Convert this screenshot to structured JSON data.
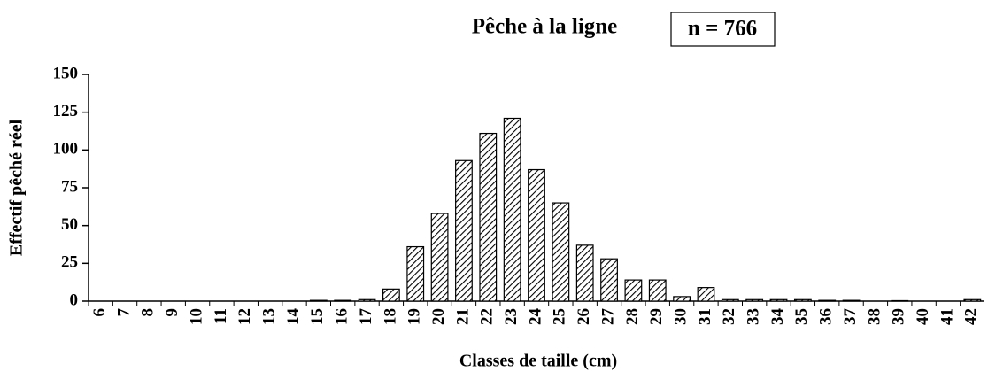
{
  "chart_data": {
    "type": "bar",
    "title": "Pêche à la ligne",
    "annotation": "n = 766",
    "xlabel": "Classes de taille (cm)",
    "ylabel": "Effectif pêché réel",
    "categories": [
      "6",
      "7",
      "8",
      "9",
      "10",
      "11",
      "12",
      "13",
      "14",
      "15",
      "16",
      "17",
      "18",
      "19",
      "20",
      "21",
      "22",
      "23",
      "24",
      "25",
      "26",
      "27",
      "28",
      "29",
      "30",
      "31",
      "32",
      "33",
      "34",
      "35",
      "36",
      "37",
      "38",
      "39",
      "40",
      "41",
      "42"
    ],
    "values": [
      0,
      0,
      0,
      0,
      0,
      0,
      0,
      0,
      0,
      0.5,
      0.5,
      1,
      8,
      36,
      58,
      93,
      111,
      121,
      87,
      65,
      37,
      28,
      14,
      14,
      3,
      9,
      1,
      1,
      1,
      1,
      0.5,
      0.5,
      0,
      0.3,
      0,
      0,
      1
    ],
    "color": "#000000",
    "ylim": [
      0,
      150
    ],
    "yticks": [
      0,
      25,
      50,
      75,
      100,
      125,
      150
    ]
  }
}
